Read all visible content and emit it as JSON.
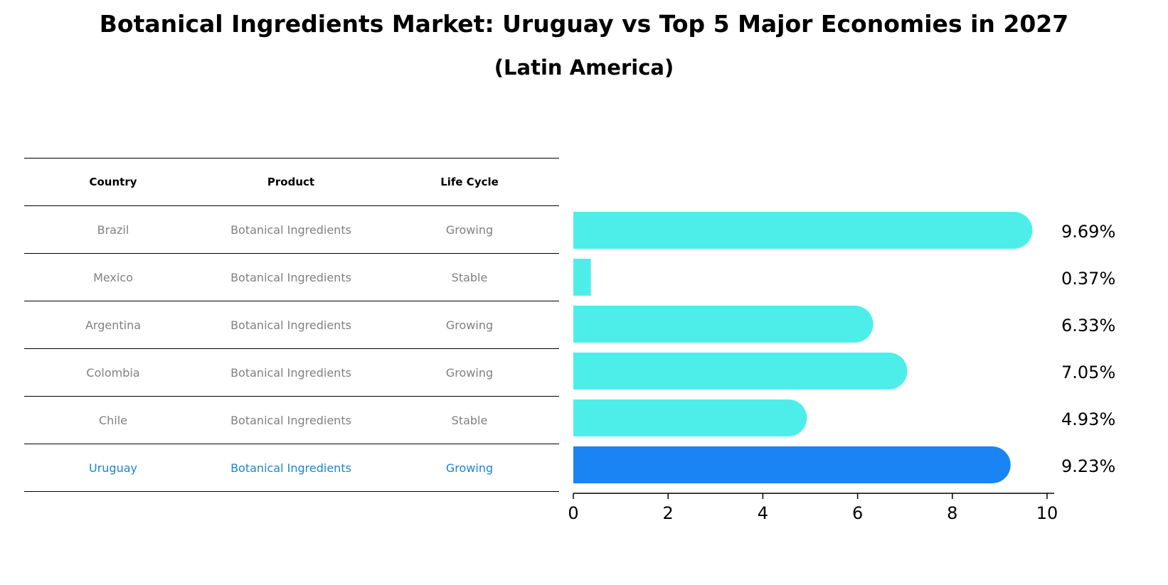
{
  "title": "Botanical Ingredients Market: Uruguay vs Top 5 Major Economies in 2027",
  "subtitle": "(Latin America)",
  "table": {
    "headers": [
      "Country",
      "Product",
      "Life Cycle"
    ],
    "rows": [
      {
        "country": "Brazil",
        "product": "Botanical Ingredients",
        "life_cycle": "Growing"
      },
      {
        "country": "Mexico",
        "product": "Botanical Ingredients",
        "life_cycle": "Stable"
      },
      {
        "country": "Argentina",
        "product": "Botanical Ingredients",
        "life_cycle": "Growing"
      },
      {
        "country": "Colombia",
        "product": "Botanical Ingredients",
        "life_cycle": "Growing"
      },
      {
        "country": "Chile",
        "product": "Botanical Ingredients",
        "life_cycle": "Stable"
      },
      {
        "country": "Uruguay",
        "product": "Botanical Ingredients",
        "life_cycle": "Growing"
      }
    ]
  },
  "colors": {
    "bar": "#4deeea",
    "highlight": "#1a84f5",
    "highlight_text": "#1a84d8",
    "muted_text": "#808080"
  },
  "chart_data": {
    "type": "bar",
    "orientation": "horizontal",
    "categories": [
      "Brazil",
      "Mexico",
      "Argentina",
      "Colombia",
      "Chile",
      "Uruguay"
    ],
    "values": [
      9.69,
      0.37,
      6.33,
      7.05,
      4.93,
      9.23
    ],
    "value_labels": [
      "9.69%",
      "0.37%",
      "6.33%",
      "7.05%",
      "4.93%",
      "9.23%"
    ],
    "highlight": "Uruguay",
    "xlim": [
      0,
      10
    ],
    "xticks": [
      "0",
      "2",
      "4",
      "6",
      "8",
      "10"
    ],
    "grid": false,
    "xlabel": "",
    "ylabel": ""
  }
}
